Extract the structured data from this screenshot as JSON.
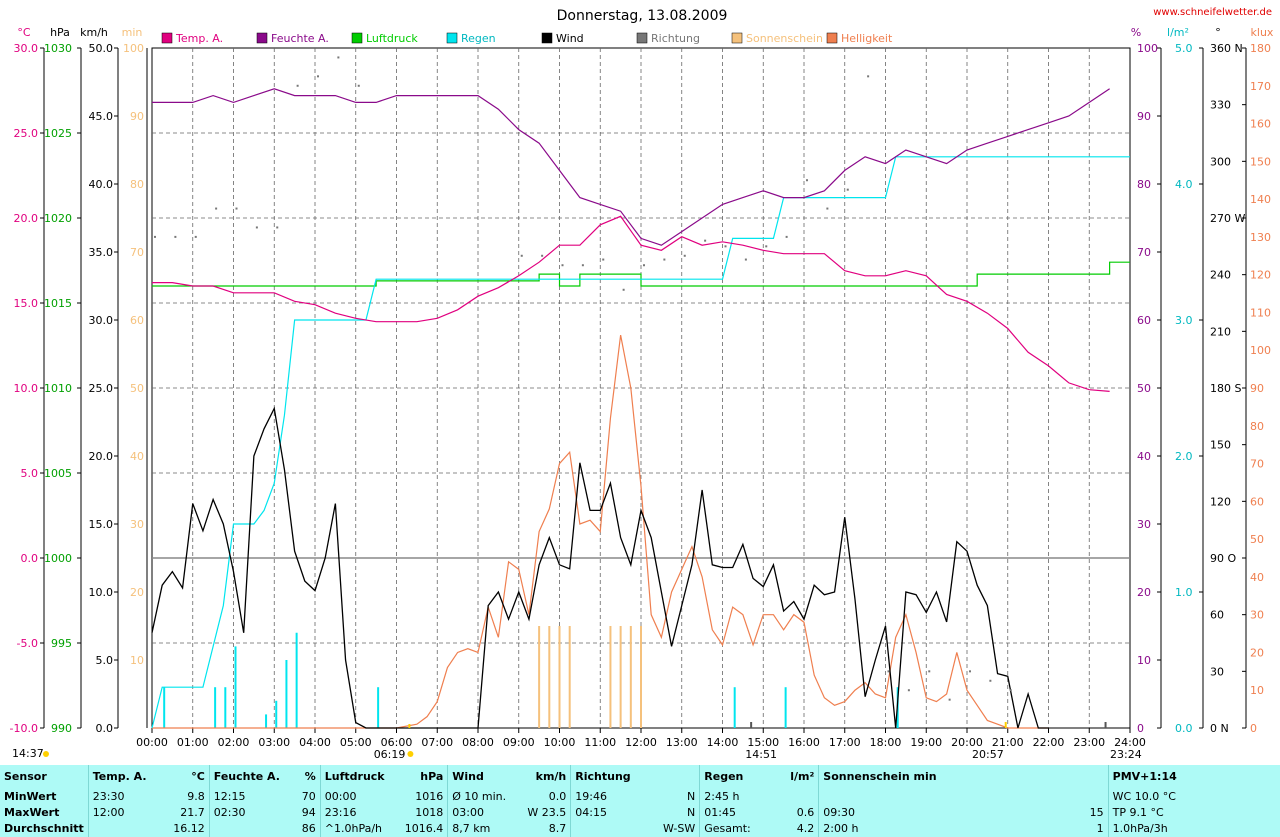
{
  "title": "Donnerstag, 13.08.2009",
  "site": "www.schneifelwetter.de",
  "colors": {
    "temp": "#e0007f",
    "humidity": "#8a0a8a",
    "pressure": "#00cc00",
    "rain": "#00e5ee",
    "wind": "#000000",
    "direction": "#777777",
    "sunshine": "#f5c17c",
    "brightness": "#ef7f4f",
    "footer_bg": "#aefaf6"
  },
  "legend": [
    {
      "label": "Temp. A.",
      "color": "#e0007f"
    },
    {
      "label": "Feuchte A.",
      "color": "#8a0a8a"
    },
    {
      "label": "Luftdruck",
      "color": "#00cc00"
    },
    {
      "label": "Regen",
      "color": "#00e5ee"
    },
    {
      "label": "Wind",
      "color": "#000000"
    },
    {
      "label": "Richtung",
      "color": "#777777"
    },
    {
      "label": "Sonnenschein",
      "color": "#f5c17c"
    },
    {
      "label": "Helligkeit",
      "color": "#ef7f4f"
    }
  ],
  "axis_units": {
    "temp": "°C",
    "pressure": "hPa",
    "wind": "km/h",
    "sunshine": "min",
    "humidity": "%",
    "rain": "l/m²",
    "direction": "°",
    "brightness": "klux"
  },
  "axes": {
    "temp_ticks": [
      "30.0",
      "25.0",
      "20.0",
      "15.0",
      "10.0",
      "5.0",
      "0.0",
      "-5.0",
      "-10.0"
    ],
    "pressure_ticks": [
      "1030",
      "1025",
      "1020",
      "1015",
      "1010",
      "1005",
      "1000",
      "995",
      "990"
    ],
    "wind_ticks": [
      "50.0",
      "45.0",
      "40.0",
      "35.0",
      "30.0",
      "25.0",
      "20.0",
      "15.0",
      "10.0",
      "5.0",
      "0.0"
    ],
    "sunshine_ticks": [
      "100",
      "90",
      "80",
      "70",
      "60",
      "50",
      "40",
      "30",
      "20",
      "10"
    ],
    "humidity_ticks": [
      "100",
      "90",
      "80",
      "70",
      "60",
      "50",
      "40",
      "30",
      "20",
      "10",
      "0"
    ],
    "rain_ticks": [
      "5.0",
      "4.0",
      "3.0",
      "2.0",
      "1.0",
      "0.0"
    ],
    "direction_ticks": [
      "360 N",
      "330",
      "300",
      "270 W",
      "240",
      "210",
      "180 S",
      "150",
      "120",
      "90 O",
      "60",
      "30",
      "0 N"
    ],
    "brightness_ticks": [
      "180",
      "170",
      "160",
      "150",
      "140",
      "130",
      "120",
      "110",
      "100",
      "90",
      "80",
      "70",
      "60",
      "50",
      "40",
      "30",
      "20",
      "10",
      "0"
    ],
    "x_ticks": [
      "00:00",
      "01:00",
      "02:00",
      "03:00",
      "04:00",
      "05:00",
      "06:00",
      "07:00",
      "08:00",
      "09:00",
      "10:00",
      "11:00",
      "12:00",
      "13:00",
      "14:00",
      "15:00",
      "16:00",
      "17:00",
      "18:00",
      "19:00",
      "20:00",
      "21:00",
      "22:00",
      "23:00",
      "24:00"
    ]
  },
  "markers": {
    "sunrise": "06:19",
    "sunset": "20:57",
    "solar_noon": "14:51",
    "left_time": "14:37",
    "right_time": "23:24"
  },
  "chart_data": {
    "type": "line",
    "title": "Donnerstag, 13.08.2009",
    "x_range_hours": [
      0,
      24
    ],
    "series": [
      {
        "name": "Temp. A.",
        "unit": "°C",
        "range": [
          -10,
          30
        ],
        "t": [
          0,
          0.5,
          1,
          1.5,
          2,
          2.5,
          3,
          3.5,
          4,
          4.5,
          5,
          5.5,
          6,
          6.5,
          7,
          7.5,
          8,
          8.5,
          9,
          9.5,
          10,
          10.5,
          11,
          11.5,
          12,
          12.5,
          13,
          13.5,
          14,
          14.5,
          15,
          15.5,
          16,
          16.5,
          17,
          17.5,
          18,
          18.5,
          19,
          19.5,
          20,
          20.5,
          21,
          21.5,
          22,
          22.5,
          23,
          23.5
        ],
        "v": [
          16.2,
          16.2,
          16.0,
          16.0,
          15.6,
          15.6,
          15.6,
          15.1,
          14.9,
          14.4,
          14.1,
          13.9,
          13.9,
          13.9,
          14.1,
          14.6,
          15.4,
          15.9,
          16.6,
          17.4,
          18.4,
          18.4,
          19.6,
          20.1,
          18.4,
          18.1,
          18.9,
          18.4,
          18.6,
          18.4,
          18.1,
          17.9,
          17.9,
          17.9,
          16.9,
          16.6,
          16.6,
          16.9,
          16.6,
          15.5,
          15.1,
          14.4,
          13.5,
          12.1,
          11.3,
          10.3,
          9.9,
          9.8
        ]
      },
      {
        "name": "Feuchte A.",
        "unit": "%",
        "range": [
          0,
          100
        ],
        "t": [
          0,
          0.5,
          1,
          1.5,
          2,
          2.5,
          3,
          3.5,
          4,
          4.5,
          5,
          5.5,
          6,
          6.5,
          7,
          7.5,
          8,
          8.5,
          9,
          9.5,
          10,
          10.5,
          11,
          11.5,
          12,
          12.5,
          13,
          13.5,
          14,
          14.5,
          15,
          15.5,
          16,
          16.5,
          17,
          17.5,
          18,
          18.5,
          19,
          19.5,
          20,
          20.5,
          21,
          21.5,
          22,
          22.5,
          23,
          23.5
        ],
        "v": [
          92,
          92,
          92,
          93,
          92,
          93,
          94,
          93,
          93,
          93,
          92,
          92,
          93,
          93,
          93,
          93,
          93,
          91,
          88,
          86,
          82,
          78,
          77,
          76,
          72,
          71,
          73,
          75,
          77,
          78,
          79,
          78,
          78,
          79,
          82,
          84,
          83,
          85,
          84,
          83,
          85,
          86,
          87,
          88,
          89,
          90,
          92,
          94
        ]
      },
      {
        "name": "Luftdruck",
        "unit": "hPa",
        "range": [
          990,
          1030
        ],
        "t": [
          0,
          1,
          2,
          3,
          4,
          5,
          5.5,
          6,
          7,
          8,
          9,
          9.5,
          10,
          10.5,
          11,
          11.5,
          12,
          13,
          14,
          15,
          16,
          17,
          18,
          19,
          20,
          20.25,
          21,
          22,
          23,
          23.5,
          24
        ],
        "v": [
          1016,
          1016,
          1016,
          1016,
          1016,
          1016,
          1016.3,
          1016.3,
          1016.3,
          1016.3,
          1016.3,
          1016.7,
          1016,
          1016.7,
          1016.7,
          1016.7,
          1016,
          1016,
          1016,
          1016,
          1016,
          1016,
          1016,
          1016,
          1016,
          1016.7,
          1016.7,
          1016.7,
          1016.7,
          1017.4,
          1017.4
        ]
      },
      {
        "name": "Regen",
        "unit": "l/m²",
        "range": [
          0,
          5
        ],
        "t": [
          0,
          0.25,
          0.5,
          1,
          1.25,
          1.5,
          1.75,
          2,
          2.5,
          2.75,
          3,
          3.25,
          3.5,
          4,
          4.5,
          5,
          5.25,
          5.5,
          6,
          9,
          14,
          14.25,
          14.5,
          15,
          15.25,
          15.5,
          16,
          17,
          18,
          18.25,
          18.5,
          20,
          22,
          24
        ],
        "v": [
          0,
          0.3,
          0.3,
          0.3,
          0.3,
          0.6,
          0.9,
          1.5,
          1.5,
          1.6,
          1.8,
          2.3,
          3.0,
          3.0,
          3.0,
          3.0,
          3.0,
          3.3,
          3.3,
          3.3,
          3.3,
          3.6,
          3.6,
          3.6,
          3.6,
          3.9,
          3.9,
          3.9,
          3.9,
          4.2,
          4.2,
          4.2,
          4.2,
          4.2
        ]
      },
      {
        "name": "Wind",
        "unit": "km/h",
        "range": [
          0,
          50
        ],
        "t": [
          0,
          0.25,
          0.5,
          0.75,
          1,
          1.25,
          1.5,
          1.75,
          2,
          2.25,
          2.5,
          2.75,
          3,
          3.25,
          3.5,
          3.75,
          4,
          4.25,
          4.5,
          4.75,
          5,
          5.25,
          5.5,
          8,
          8.25,
          8.5,
          8.75,
          9,
          9.25,
          9.5,
          9.75,
          10,
          10.25,
          10.5,
          10.75,
          11,
          11.25,
          11.5,
          11.75,
          12,
          12.25,
          12.5,
          12.75,
          13,
          13.25,
          13.5,
          13.75,
          14,
          14.25,
          14.5,
          14.75,
          15,
          15.25,
          15.5,
          15.75,
          16,
          16.25,
          16.5,
          16.75,
          17,
          17.25,
          17.5,
          17.75,
          18,
          18.25,
          18.5,
          18.75,
          19,
          19.25,
          19.5,
          19.75,
          20,
          20.25,
          20.5,
          20.75,
          21,
          21.25,
          21.5,
          21.75,
          22
        ],
        "v": [
          7,
          10.5,
          11.5,
          10.3,
          16.5,
          14.5,
          16.8,
          15,
          11.5,
          7,
          20,
          22,
          23.5,
          19,
          13,
          10.8,
          10.1,
          12.5,
          16.5,
          5,
          0.4,
          0,
          0,
          0,
          9,
          10,
          8,
          10,
          8,
          12,
          14,
          12,
          11.7,
          19.5,
          16,
          16,
          18,
          14,
          12,
          16,
          14,
          10,
          6,
          9,
          12,
          17.5,
          12,
          11.8,
          11.8,
          13.5,
          11,
          10.4,
          12,
          8.6,
          9.3,
          8,
          10.5,
          9.8,
          10,
          15.5,
          9.5,
          2.3,
          5,
          7.5,
          0,
          10,
          9.8,
          8.5,
          10,
          7.8,
          13.7,
          13,
          10.5,
          9,
          4,
          3.8,
          0,
          2.5,
          0,
          0
        ]
      },
      {
        "name": "Helligkeit",
        "unit": "klux",
        "range": [
          0,
          180
        ],
        "t": [
          0,
          6,
          6.5,
          6.75,
          7,
          7.25,
          7.5,
          7.75,
          8,
          8.25,
          8.5,
          8.75,
          9,
          9.25,
          9.5,
          9.75,
          10,
          10.25,
          10.5,
          10.75,
          11,
          11.25,
          11.5,
          11.75,
          12,
          12.25,
          12.5,
          12.75,
          13,
          13.25,
          13.5,
          13.75,
          14,
          14.25,
          14.5,
          14.75,
          15,
          15.25,
          15.5,
          15.75,
          16,
          16.25,
          16.5,
          16.75,
          17,
          17.25,
          17.5,
          17.75,
          18,
          18.25,
          18.5,
          18.75,
          19,
          19.25,
          19.5,
          19.75,
          20,
          20.25,
          20.5,
          20.75,
          21,
          21.25,
          21.5,
          22
        ],
        "v": [
          0,
          0,
          1,
          3,
          7,
          16,
          20,
          21,
          20,
          32,
          24,
          44,
          42,
          30,
          52,
          58,
          70,
          73,
          54,
          55,
          52,
          82,
          104,
          90,
          64,
          30,
          24,
          36,
          42,
          48,
          40,
          26,
          22,
          32,
          30,
          22,
          30,
          30,
          26,
          30,
          28,
          14,
          8,
          6,
          7,
          10,
          12,
          9,
          8,
          24,
          30,
          20,
          8,
          7,
          9,
          20,
          10,
          6,
          2,
          1,
          0,
          0,
          0,
          0
        ]
      },
      {
        "name": "Richtung",
        "unit": "°",
        "range": [
          0,
          360
        ],
        "t": [
          0,
          0.5,
          1,
          1.5,
          2,
          2.5,
          3,
          3.5,
          4,
          4.5,
          5,
          9,
          9.5,
          10,
          10.5,
          11,
          11.5,
          12,
          12.5,
          13,
          13.5,
          14,
          14.5,
          15,
          15.5,
          16,
          16.5,
          17,
          17.5,
          18,
          18.5,
          19,
          19.5,
          20,
          20.5,
          21
        ],
        "v": [
          260,
          260,
          260,
          275,
          275,
          265,
          265,
          340,
          345,
          355,
          340,
          250,
          250,
          245,
          245,
          248,
          232,
          245,
          248,
          250,
          258,
          255,
          248,
          255,
          260,
          290,
          275,
          285,
          345,
          30,
          20,
          30,
          15,
          30,
          25,
          20
        ]
      },
      {
        "name": "Sonnenschein",
        "unit": "min",
        "range": [
          0,
          100
        ],
        "bars_t": [
          9.5,
          9.75,
          10,
          10.25,
          11.25,
          11.5,
          11.75,
          12
        ],
        "bars_v": [
          15,
          15,
          15,
          15,
          15,
          15,
          15,
          15
        ]
      }
    ]
  },
  "footer": {
    "headers": [
      {
        "name": "Sensor",
        "unit": ""
      },
      {
        "name": "Temp. A.",
        "unit": "°C"
      },
      {
        "name": "Feuchte A.",
        "unit": "%"
      },
      {
        "name": "Luftdruck",
        "unit": "hPa"
      },
      {
        "name": "Wind",
        "unit": "km/h"
      },
      {
        "name": "Richtung",
        "unit": ""
      },
      {
        "name": "Regen",
        "unit": "l/m²"
      },
      {
        "name": "Sonnenschein min",
        "unit": ""
      },
      {
        "name": "PMV+1:14",
        "unit": ""
      }
    ],
    "rows": [
      {
        "label": "MinWert",
        "cells": [
          [
            "23:30",
            "9.8"
          ],
          [
            "12:15",
            "70"
          ],
          [
            "00:00",
            "1016"
          ],
          [
            "Ø 10 min.",
            "0.0"
          ],
          [
            "19:46",
            "N"
          ],
          [
            "2:45 h",
            ""
          ],
          [
            "",
            ""
          ],
          [
            "WC 10.0 °C",
            ""
          ]
        ]
      },
      {
        "label": "MaxWert",
        "cells": [
          [
            "12:00",
            "21.7"
          ],
          [
            "02:30",
            "94"
          ],
          [
            "23:16",
            "1018"
          ],
          [
            "03:00",
            "W 23.5"
          ],
          [
            "04:15",
            "N"
          ],
          [
            "01:45",
            "0.6"
          ],
          [
            "09:30",
            "15"
          ],
          [
            "TP 9.1 °C",
            ""
          ]
        ]
      },
      {
        "label": "Durchschnitt",
        "cells": [
          [
            "",
            "16.12"
          ],
          [
            "",
            "86"
          ],
          [
            "^1.0hPa/h",
            "1016.4"
          ],
          [
            "8,7 km",
            "8.7"
          ],
          [
            "",
            "W-SW"
          ],
          [
            "Gesamt:",
            "4.2"
          ],
          [
            "2:00 h",
            "1"
          ],
          [
            "1.0hPa/3h",
            ""
          ]
        ]
      }
    ]
  }
}
